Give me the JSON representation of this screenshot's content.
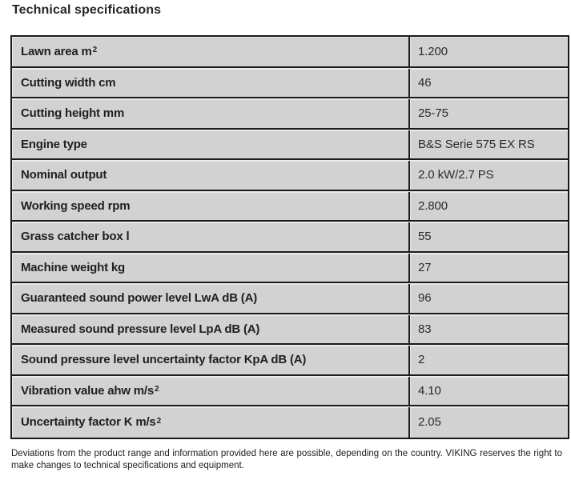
{
  "title": "Technical specifications",
  "table": {
    "rows": [
      {
        "label": "Lawn area m",
        "sup": "2",
        "value": "1.200"
      },
      {
        "label": "Cutting width cm",
        "sup": "",
        "value": "46"
      },
      {
        "label": "Cutting height mm",
        "sup": "",
        "value": "25-75"
      },
      {
        "label": "Engine type",
        "sup": "",
        "value": "B&S Serie 575 EX RS"
      },
      {
        "label": "Nominal output",
        "sup": "",
        "value": "2.0 kW/2.7 PS"
      },
      {
        "label": "Working speed rpm",
        "sup": "",
        "value": "2.800"
      },
      {
        "label": "Grass catcher box l",
        "sup": "",
        "value": "55"
      },
      {
        "label": "Machine weight kg",
        "sup": "",
        "value": "27"
      },
      {
        "label": "Guaranteed sound power level LwA dB (A)",
        "sup": "",
        "value": "96"
      },
      {
        "label": "Measured sound pressure level LpA dB (A)",
        "sup": "",
        "value": "83"
      },
      {
        "label": "Sound pressure level uncertainty factor KpA dB (A)",
        "sup": "",
        "value": "2"
      },
      {
        "label": "Vibration value ahw m/s",
        "sup": "2",
        "value": "4.10"
      },
      {
        "label": "Uncertainty factor K m/s",
        "sup": "2",
        "value": "2.05"
      }
    ]
  },
  "footnote": "Deviations from the product range and information provided here are possible, depending on the country. VIKING reserves the right to make changes to technical specifications and equipment.",
  "colors": {
    "cell_bg": "#d2d2d2",
    "border": "#1a1a1a",
    "page_bg": "#ffffff",
    "title_text": "#262626",
    "label_text": "#1f1f1f",
    "value_text": "#2b2b2b"
  }
}
